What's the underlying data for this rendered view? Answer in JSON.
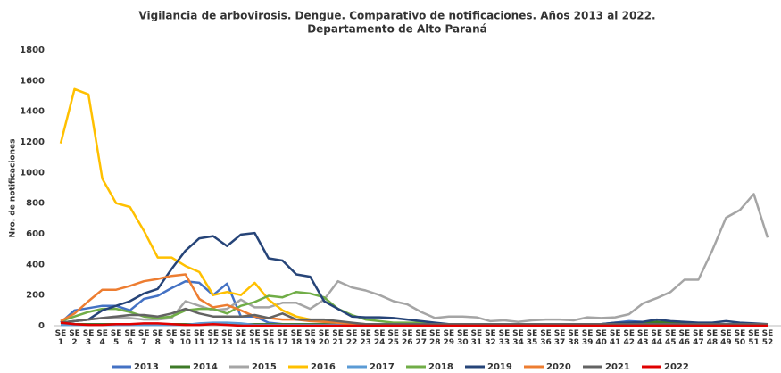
{
  "chart_data": {
    "type": "line",
    "title": "Vigilancia  de arbovirosis. Dengue. Comparativo de notificaciones.  Años 2013 al 2022.",
    "subtitle": "Departamento  de Alto Paraná",
    "y_label": "Nro. de notificaciones",
    "categories": [
      "SE 1",
      "SE 2",
      "SE 3",
      "SE 4",
      "SE 5",
      "SE 6",
      "SE 7",
      "SE 8",
      "SE 9",
      "SE 10",
      "SE 11",
      "SE 12",
      "SE 13",
      "SE 14",
      "SE 15",
      "SE 16",
      "SE 17",
      "SE 18",
      "SE 19",
      "SE 20",
      "SE 21",
      "SE 22",
      "SE 23",
      "SE 24",
      "SE 25",
      "SE 26",
      "SE 27",
      "SE 28",
      "SE 29",
      "SE 30",
      "SE 31",
      "SE 32",
      "SE 33",
      "SE 34",
      "SE 35",
      "SE 36",
      "SE 37",
      "SE 38",
      "SE 39",
      "SE 40",
      "SE 41",
      "SE 42",
      "SE 43",
      "SE 44",
      "SE 45",
      "SE 46",
      "SE 47",
      "SE 48",
      "SE 49",
      "SE 50",
      "SE 51",
      "SE 52"
    ],
    "ylim": [
      0,
      1800
    ],
    "yticks": [
      0,
      200,
      400,
      600,
      800,
      1000,
      1200,
      1400,
      1600,
      1800
    ],
    "grid": false,
    "legend": "bottom",
    "series": [
      {
        "name": "2013",
        "color": "#4472c4",
        "values": [
          20,
          100,
          115,
          130,
          130,
          100,
          175,
          195,
          245,
          290,
          280,
          200,
          275,
          60,
          60,
          20,
          10,
          10,
          10,
          10,
          10,
          10,
          10,
          10,
          10,
          10,
          10,
          10,
          10,
          10,
          10,
          10,
          10,
          10,
          10,
          10,
          10,
          10,
          10,
          10,
          20,
          30,
          25,
          20,
          20,
          20,
          15,
          10,
          10,
          10,
          10,
          10
        ]
      },
      {
        "name": "2014",
        "color": "#3d7a27",
        "values": [
          10,
          10,
          10,
          10,
          10,
          10,
          10,
          10,
          10,
          10,
          10,
          10,
          10,
          10,
          10,
          10,
          10,
          10,
          10,
          10,
          10,
          10,
          10,
          10,
          10,
          10,
          10,
          10,
          10,
          10,
          10,
          10,
          10,
          10,
          10,
          10,
          10,
          10,
          10,
          10,
          15,
          20,
          20,
          25,
          20,
          15,
          15,
          10,
          10,
          10,
          10,
          10
        ]
      },
      {
        "name": "2015",
        "color": "#a5a5a5",
        "values": [
          20,
          30,
          40,
          50,
          50,
          50,
          40,
          40,
          50,
          160,
          130,
          100,
          110,
          170,
          120,
          120,
          150,
          150,
          110,
          170,
          290,
          250,
          230,
          200,
          160,
          140,
          90,
          50,
          60,
          60,
          55,
          30,
          35,
          25,
          35,
          40,
          40,
          35,
          55,
          50,
          55,
          75,
          145,
          180,
          220,
          300,
          300,
          490,
          705,
          755,
          860,
          575
        ]
      },
      {
        "name": "2016",
        "color": "#ffc000",
        "values": [
          1190,
          1545,
          1510,
          960,
          800,
          775,
          620,
          445,
          445,
          390,
          350,
          200,
          220,
          200,
          280,
          170,
          100,
          60,
          40,
          30,
          20,
          15,
          10,
          10,
          5,
          5,
          5,
          5,
          5,
          5,
          0,
          0,
          0,
          0,
          0,
          0,
          0,
          0,
          0,
          0,
          0,
          0,
          0,
          0,
          0,
          0,
          0,
          0,
          0,
          0,
          0,
          0
        ]
      },
      {
        "name": "2017",
        "color": "#5b9bd5",
        "values": [
          5,
          5,
          5,
          5,
          5,
          5,
          5,
          5,
          5,
          5,
          15,
          20,
          20,
          15,
          5,
          5,
          5,
          5,
          5,
          5,
          5,
          5,
          5,
          5,
          5,
          5,
          5,
          5,
          5,
          5,
          5,
          5,
          5,
          5,
          5,
          5,
          5,
          5,
          5,
          5,
          5,
          5,
          5,
          5,
          5,
          5,
          5,
          5,
          5,
          5,
          5,
          5
        ]
      },
      {
        "name": "2018",
        "color": "#70ad47",
        "values": [
          30,
          60,
          90,
          110,
          110,
          90,
          60,
          50,
          60,
          100,
          110,
          110,
          80,
          130,
          155,
          195,
          185,
          220,
          210,
          185,
          110,
          70,
          40,
          30,
          20,
          20,
          20,
          10,
          10,
          10,
          10,
          10,
          10,
          10,
          10,
          10,
          10,
          10,
          10,
          10,
          10,
          10,
          10,
          10,
          10,
          10,
          10,
          10,
          10,
          10,
          10,
          10
        ]
      },
      {
        "name": "2019",
        "color": "#264478",
        "values": [
          20,
          30,
          40,
          100,
          130,
          160,
          210,
          240,
          370,
          490,
          570,
          585,
          520,
          595,
          605,
          440,
          425,
          335,
          320,
          160,
          110,
          60,
          55,
          55,
          50,
          40,
          30,
          20,
          10,
          10,
          10,
          10,
          10,
          10,
          10,
          10,
          10,
          10,
          10,
          10,
          20,
          20,
          25,
          40,
          30,
          25,
          20,
          20,
          30,
          20,
          15,
          10
        ]
      },
      {
        "name": "2020",
        "color": "#ed7d31",
        "values": [
          30,
          80,
          160,
          235,
          235,
          260,
          290,
          305,
          325,
          335,
          175,
          120,
          135,
          100,
          60,
          50,
          40,
          40,
          30,
          25,
          20,
          10,
          10,
          10,
          10,
          10,
          10,
          10,
          10,
          10,
          10,
          10,
          10,
          10,
          10,
          10,
          10,
          10,
          10,
          10,
          10,
          10,
          10,
          10,
          10,
          10,
          10,
          10,
          10,
          10,
          10,
          10
        ]
      },
      {
        "name": "2021",
        "color": "#636363",
        "values": [
          20,
          30,
          40,
          50,
          60,
          70,
          70,
          60,
          80,
          110,
          80,
          60,
          60,
          60,
          70,
          50,
          80,
          40,
          40,
          40,
          30,
          20,
          10,
          10,
          10,
          10,
          10,
          10,
          10,
          10,
          10,
          10,
          10,
          10,
          10,
          10,
          10,
          10,
          10,
          10,
          10,
          10,
          10,
          10,
          10,
          10,
          10,
          10,
          10,
          10,
          10,
          10
        ]
      },
      {
        "name": "2022",
        "color": "#e00000",
        "values": [
          20,
          10,
          5,
          5,
          10,
          10,
          15,
          15,
          10,
          5,
          5,
          10,
          5,
          0,
          0,
          0,
          0,
          0,
          0,
          0,
          0,
          0,
          0,
          0,
          0,
          0,
          0,
          0,
          0,
          0,
          0,
          0,
          0,
          0,
          0,
          0,
          0,
          0,
          0,
          0,
          0,
          0,
          0,
          0,
          0,
          0,
          0,
          0,
          0,
          0,
          0,
          0
        ]
      }
    ]
  }
}
